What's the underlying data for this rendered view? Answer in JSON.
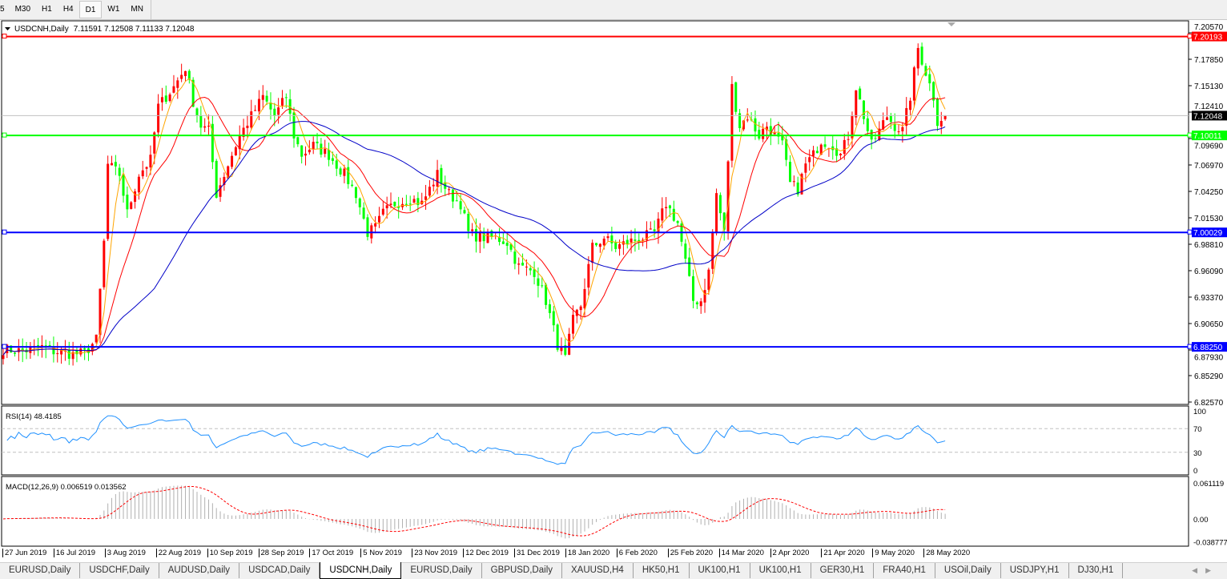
{
  "toolbar": {
    "timeframes": [
      {
        "label": "5"
      },
      {
        "label": "M30"
      },
      {
        "label": "H1"
      },
      {
        "label": "H4"
      },
      {
        "label": "D1",
        "active": true
      },
      {
        "label": "W1"
      },
      {
        "label": "MN"
      }
    ]
  },
  "chart": {
    "symbol_header": "USDCNH,Daily",
    "ohlc": "7.11591 7.12508 7.11133 7.12048",
    "up_color": "#ff0000",
    "down_color": "#00ff00",
    "current_price": "7.12048",
    "hlines": [
      {
        "label": "7.20193",
        "value": 7.20193,
        "color": "#ff0000"
      },
      {
        "label": "7.10011",
        "value": 7.10011,
        "color": "#00ff00"
      },
      {
        "label": "7.00029",
        "value": 7.00029,
        "color": "#0000ff"
      },
      {
        "label": "6.88250",
        "value": 6.8825,
        "color": "#0000ff"
      }
    ],
    "price_axis": [
      "7.20570",
      "7.17850",
      "7.15130",
      "7.12410",
      "7.09690",
      "7.06970",
      "7.04250",
      "7.01530",
      "6.98810",
      "6.96090",
      "6.93370",
      "6.90650",
      "6.87930",
      "6.85290",
      "6.82570"
    ],
    "ma_colors": [
      "#ffa500",
      "#ff0000",
      "#0000c8"
    ],
    "close_keypoints": [
      [
        0,
        6.88
      ],
      [
        5,
        6.878
      ],
      [
        10,
        6.882
      ],
      [
        13,
        6.878
      ],
      [
        18,
        6.875
      ],
      [
        21,
        6.876
      ],
      [
        24,
        6.89
      ],
      [
        26,
        6.99
      ],
      [
        27,
        7.07
      ],
      [
        30,
        7.06
      ],
      [
        32,
        7.02
      ],
      [
        35,
        7.06
      ],
      [
        38,
        7.075
      ],
      [
        40,
        7.13
      ],
      [
        44,
        7.15
      ],
      [
        47,
        7.17
      ],
      [
        49,
        7.135
      ],
      [
        51,
        7.11
      ],
      [
        53,
        7.105
      ],
      [
        55,
        7.04
      ],
      [
        58,
        7.07
      ],
      [
        61,
        7.1
      ],
      [
        64,
        7.12
      ],
      [
        67,
        7.14
      ],
      [
        70,
        7.12
      ],
      [
        73,
        7.14
      ],
      [
        75,
        7.1
      ],
      [
        77,
        7.08
      ],
      [
        80,
        7.09
      ],
      [
        84,
        7.08
      ],
      [
        88,
        7.06
      ],
      [
        91,
        7.04
      ],
      [
        94,
        7.0
      ],
      [
        96,
        7.005
      ],
      [
        98,
        7.02
      ],
      [
        101,
        7.03
      ],
      [
        105,
        7.035
      ],
      [
        108,
        7.03
      ],
      [
        112,
        7.06
      ],
      [
        115,
        7.04
      ],
      [
        118,
        7.03
      ],
      [
        120,
        7.0
      ],
      [
        123,
        6.995
      ],
      [
        127,
        6.995
      ],
      [
        130,
        6.99
      ],
      [
        133,
        6.965
      ],
      [
        137,
        6.96
      ],
      [
        140,
        6.93
      ],
      [
        143,
        6.885
      ],
      [
        145,
        6.87
      ],
      [
        147,
        6.91
      ],
      [
        149,
        6.925
      ],
      [
        152,
        6.985
      ],
      [
        155,
        6.995
      ],
      [
        158,
        6.985
      ],
      [
        161,
        6.99
      ],
      [
        165,
        6.995
      ],
      [
        168,
        7.0
      ],
      [
        171,
        7.03
      ],
      [
        174,
        7.01
      ],
      [
        176,
        6.97
      ],
      [
        178,
        6.93
      ],
      [
        180,
        6.93
      ],
      [
        182,
        6.96
      ],
      [
        184,
        7.04
      ],
      [
        186,
        7.0
      ],
      [
        188,
        7.15
      ],
      [
        190,
        7.11
      ],
      [
        192,
        7.12
      ],
      [
        195,
        7.1
      ],
      [
        197,
        7.11
      ],
      [
        199,
        7.1
      ],
      [
        201,
        7.09
      ],
      [
        203,
        7.05
      ],
      [
        205,
        7.045
      ],
      [
        207,
        7.07
      ],
      [
        209,
        7.08
      ],
      [
        211,
        7.095
      ],
      [
        214,
        7.09
      ],
      [
        216,
        7.08
      ],
      [
        218,
        7.1
      ],
      [
        220,
        7.15
      ],
      [
        222,
        7.12
      ],
      [
        224,
        7.09
      ],
      [
        226,
        7.105
      ],
      [
        228,
        7.12
      ],
      [
        230,
        7.11
      ],
      [
        232,
        7.105
      ],
      [
        234,
        7.14
      ],
      [
        236,
        7.19
      ],
      [
        238,
        7.165
      ],
      [
        240,
        7.14
      ],
      [
        241,
        7.115
      ],
      [
        243,
        7.12048
      ]
    ],
    "rsi": {
      "label": "RSI(14) 48.4185",
      "axis": [
        "100",
        "70",
        "30",
        "0"
      ]
    },
    "macd": {
      "label": "MACD(12,26,9) 0.006519 0.013562",
      "axis": [
        "0.061119",
        "0.00",
        "-0.038777"
      ]
    },
    "dates": [
      "27 Jun 2019",
      "16 Jul 2019",
      "3 Aug 2019",
      "22 Aug 2019",
      "10 Sep 2019",
      "28 Sep 2019",
      "17 Oct 2019",
      "5 Nov 2019",
      "23 Nov 2019",
      "12 Dec 2019",
      "31 Dec 2019",
      "18 Jan 2020",
      "6 Feb 2020",
      "25 Feb 2020",
      "14 Mar 2020",
      "2 Apr 2020",
      "21 Apr 2020",
      "9 May 2020",
      "28 May 2020"
    ]
  },
  "tabs": [
    {
      "label": "EURUSD,Daily"
    },
    {
      "label": "USDCHF,Daily"
    },
    {
      "label": "AUDUSD,Daily"
    },
    {
      "label": "USDCAD,Daily"
    },
    {
      "label": "USDCNH,Daily",
      "active": true
    },
    {
      "label": "EURUSD,Daily"
    },
    {
      "label": "GBPUSD,Daily"
    },
    {
      "label": "XAUUSD,H4"
    },
    {
      "label": "HK50,H1"
    },
    {
      "label": "UK100,H1"
    },
    {
      "label": "UK100,H1"
    },
    {
      "label": "GER30,H1"
    },
    {
      "label": "FRA40,H1"
    },
    {
      "label": "USOil,Daily"
    },
    {
      "label": "USDJPY,H1"
    },
    {
      "label": "DJ30,H1"
    }
  ]
}
